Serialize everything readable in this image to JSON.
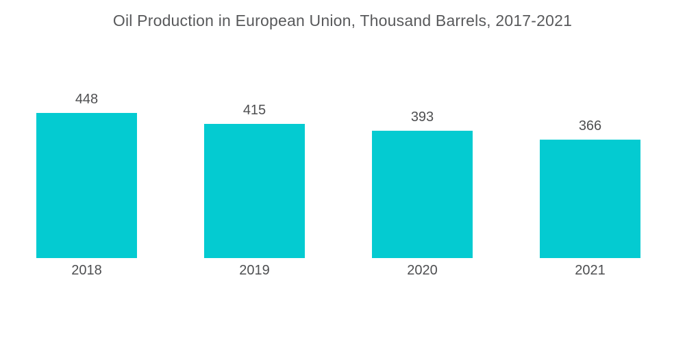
{
  "colors": {
    "background": "#FFFFFF",
    "bar": "#04CBD1",
    "title_text": "#58595B",
    "label_text": "#4D4E50"
  },
  "chart_data": {
    "type": "bar",
    "title": "Oil Production in European Union, Thousand Barrels, 2017-2021",
    "categories": [
      "2018",
      "2019",
      "2020",
      "2021"
    ],
    "values": [
      448,
      415,
      393,
      366
    ],
    "series_name": "Oil Production, Thousand Barrels",
    "xlabel": "",
    "ylabel": "",
    "ylim": [
      0,
      448
    ],
    "grid": false,
    "axes_visible": false,
    "legend": "none",
    "data_labels": "above-bars",
    "bar_color": "#04CBD1"
  }
}
